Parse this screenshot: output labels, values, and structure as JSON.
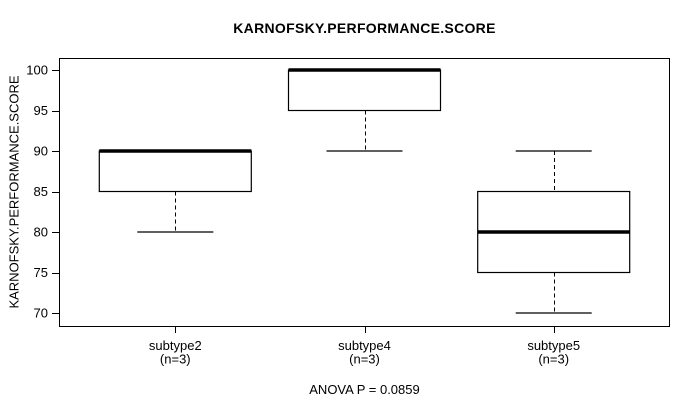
{
  "chart_data": {
    "type": "box",
    "title": "KARNOFSKY.PERFORMANCE.SCORE",
    "ylabel": "KARNOFSKY.PERFORMANCE.SCORE",
    "footer_annotation": "ANOVA P = 0.0859",
    "ylim": [
      70,
      100
    ],
    "yticks": [
      70,
      75,
      80,
      85,
      90,
      95,
      100
    ],
    "grid": false,
    "legend": "none",
    "line_color": "#000000",
    "box_fill": "#ffffff",
    "groups": [
      {
        "label": "subtype2",
        "sublabel": "(n=3)",
        "n": 3,
        "whisker_low": 80,
        "q1": 85,
        "median": 90,
        "q3": 90,
        "whisker_high": 90
      },
      {
        "label": "subtype4",
        "sublabel": "(n=3)",
        "n": 3,
        "whisker_low": 90,
        "q1": 95,
        "median": 100,
        "q3": 100,
        "whisker_high": 100
      },
      {
        "label": "subtype5",
        "sublabel": "(n=3)",
        "n": 3,
        "whisker_low": 70,
        "q1": 75,
        "median": 80,
        "q3": 85,
        "whisker_high": 90
      }
    ]
  }
}
